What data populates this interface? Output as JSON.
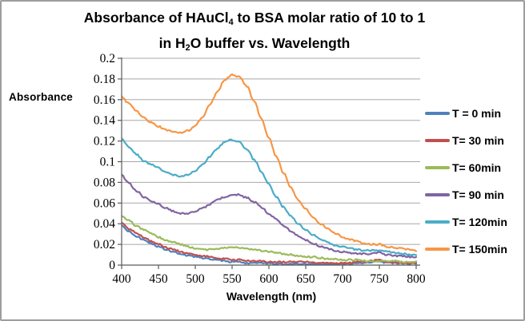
{
  "frame": {
    "border_color": "#9d9d9d",
    "background": "#ffffff"
  },
  "chart_data": {
    "type": "line",
    "title_lines": [
      {
        "parts": [
          {
            "t": "Absorbance of HAuCl"
          },
          {
            "t": "4",
            "sub": true
          },
          {
            "t": " to BSA molar ratio of 10 to 1"
          }
        ]
      },
      {
        "parts": [
          {
            "t": "in H"
          },
          {
            "t": "2",
            "sub": true
          },
          {
            "t": "O buffer vs. Wavelength"
          }
        ]
      }
    ],
    "xlabel": "Wavelength (nm)",
    "ylabel": "Absorbance",
    "xlim": [
      400,
      800
    ],
    "ylim": [
      0,
      0.2
    ],
    "x_ticks": [
      400,
      450,
      500,
      550,
      600,
      650,
      700,
      750,
      800
    ],
    "x_tick_labels": [
      "400",
      "450",
      "500",
      "550",
      "600",
      "650",
      "700",
      "750",
      "800"
    ],
    "y_ticks": [
      0,
      0.02,
      0.04,
      0.06,
      0.08,
      0.1,
      0.12,
      0.14,
      0.16,
      0.18,
      0.2
    ],
    "y_tick_labels": [
      "0",
      "0.02",
      "0.04",
      "0.06",
      "0.08",
      "0.1",
      "0.12",
      "0.14",
      "0.16",
      "0.18",
      "0.2"
    ],
    "grid": "horizontal",
    "legend_position": "right",
    "axis_color": "#595959",
    "gridline_color": "#a8a8a8",
    "x": [
      400,
      410,
      420,
      430,
      440,
      450,
      460,
      470,
      480,
      490,
      500,
      510,
      520,
      530,
      540,
      550,
      560,
      570,
      580,
      590,
      600,
      610,
      620,
      630,
      640,
      650,
      660,
      670,
      680,
      690,
      700,
      710,
      720,
      730,
      740,
      750,
      760,
      770,
      780,
      790,
      800
    ],
    "series": [
      {
        "name": "T = 0 min",
        "color": "#4F81BD",
        "values": [
          0.038,
          0.033,
          0.028,
          0.024,
          0.021,
          0.018,
          0.015,
          0.013,
          0.011,
          0.009,
          0.008,
          0.007,
          0.006,
          0.005,
          0.004,
          0.003,
          0.003,
          0.002,
          0.002,
          0.002,
          0.002,
          0.001,
          0.001,
          0.001,
          0.001,
          0.001,
          0.001,
          0.001,
          0.001,
          0.001,
          0.001,
          0.001,
          0.002,
          0.002,
          0.003,
          0.004,
          0.002,
          0.002,
          0.002,
          0.002,
          0.002
        ]
      },
      {
        "name": "T= 30 min",
        "color": "#C0504D",
        "values": [
          0.041,
          0.035,
          0.031,
          0.027,
          0.023,
          0.02,
          0.017,
          0.015,
          0.013,
          0.011,
          0.01,
          0.009,
          0.008,
          0.007,
          0.006,
          0.005,
          0.005,
          0.004,
          0.004,
          0.004,
          0.003,
          0.003,
          0.003,
          0.003,
          0.003,
          0.003,
          0.002,
          0.002,
          0.002,
          0.002,
          0.002,
          0.002,
          0.003,
          0.003,
          0.004,
          0.005,
          0.003,
          0.003,
          0.002,
          0.002,
          0.002
        ]
      },
      {
        "name": "T= 60min",
        "color": "#9BBB59",
        "values": [
          0.048,
          0.043,
          0.038,
          0.034,
          0.031,
          0.027,
          0.024,
          0.022,
          0.02,
          0.018,
          0.016,
          0.015,
          0.015,
          0.016,
          0.017,
          0.017,
          0.017,
          0.016,
          0.015,
          0.014,
          0.013,
          0.012,
          0.011,
          0.01,
          0.009,
          0.008,
          0.008,
          0.007,
          0.006,
          0.006,
          0.005,
          0.005,
          0.005,
          0.004,
          0.004,
          0.004,
          0.004,
          0.004,
          0.003,
          0.003,
          0.003
        ]
      },
      {
        "name": "T= 90 min",
        "color": "#8064A2",
        "values": [
          0.087,
          0.079,
          0.072,
          0.066,
          0.062,
          0.059,
          0.055,
          0.052,
          0.05,
          0.05,
          0.052,
          0.055,
          0.059,
          0.063,
          0.066,
          0.068,
          0.068,
          0.065,
          0.061,
          0.056,
          0.05,
          0.044,
          0.038,
          0.033,
          0.028,
          0.024,
          0.021,
          0.018,
          0.016,
          0.014,
          0.013,
          0.012,
          0.011,
          0.011,
          0.011,
          0.012,
          0.01,
          0.009,
          0.009,
          0.008,
          0.008
        ]
      },
      {
        "name": "T= 120min",
        "color": "#4BACC6",
        "values": [
          0.122,
          0.114,
          0.107,
          0.101,
          0.097,
          0.094,
          0.09,
          0.087,
          0.086,
          0.087,
          0.091,
          0.097,
          0.105,
          0.113,
          0.119,
          0.121,
          0.119,
          0.112,
          0.102,
          0.09,
          0.078,
          0.066,
          0.056,
          0.047,
          0.04,
          0.034,
          0.029,
          0.025,
          0.022,
          0.019,
          0.018,
          0.016,
          0.015,
          0.014,
          0.014,
          0.014,
          0.013,
          0.012,
          0.011,
          0.01,
          0.01
        ]
      },
      {
        "name": "T= 150min",
        "color": "#F79646",
        "values": [
          0.163,
          0.156,
          0.149,
          0.143,
          0.138,
          0.134,
          0.131,
          0.129,
          0.128,
          0.13,
          0.135,
          0.143,
          0.155,
          0.168,
          0.179,
          0.184,
          0.182,
          0.173,
          0.158,
          0.141,
          0.123,
          0.105,
          0.089,
          0.075,
          0.063,
          0.054,
          0.046,
          0.04,
          0.035,
          0.031,
          0.027,
          0.025,
          0.023,
          0.021,
          0.02,
          0.02,
          0.018,
          0.017,
          0.016,
          0.015,
          0.014
        ]
      }
    ]
  }
}
